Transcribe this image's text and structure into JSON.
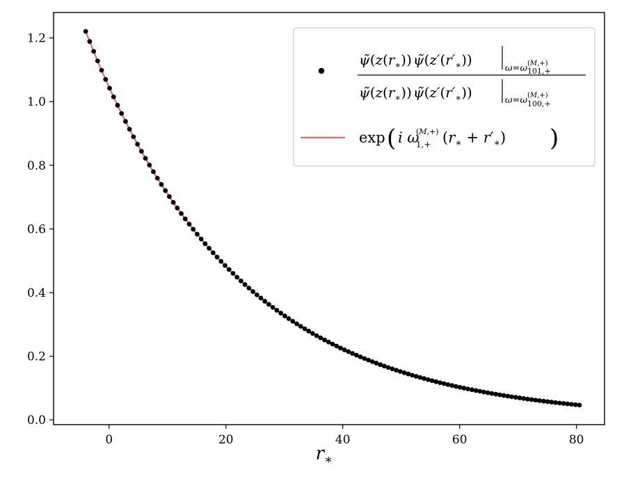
{
  "chart_data": {
    "type": "scatter",
    "xlabel": "r_*",
    "ylabel": "",
    "xlim": [
      -9.5,
      84.8
    ],
    "ylim": [
      -0.015,
      1.28
    ],
    "x_ticks": [
      0,
      20,
      40,
      60,
      80
    ],
    "y_ticks": [
      0.0,
      0.2,
      0.4,
      0.6,
      0.8,
      1.0,
      1.2
    ],
    "x_tick_labels": [
      "0",
      "20",
      "40",
      "60",
      "80"
    ],
    "y_tick_labels": [
      "0.0",
      "0.2",
      "0.4",
      "0.6",
      "0.8",
      "1.0",
      "1.2"
    ],
    "grid": false,
    "legend_position": "top-right",
    "curve_model": {
      "amplitude": 1.0457,
      "decay_rate": 0.03869
    },
    "series": [
      {
        "name": "ψ̃(z(r*)) ψ̃(z′(r′*)) |ω=ω(M,+)101,+ / ψ̃(z(r*)) ψ̃(z′(r′*)) |ω=ω(M,+)100,+",
        "kind": "points",
        "color": "#000000",
        "x_start": -4.0,
        "x_end": 80.5,
        "num_points": 125
      },
      {
        "name": "exp(i ω(M,+)1,+ (r* + r′*))",
        "kind": "line",
        "color": "#f06666",
        "x_start": -4.0,
        "x_end": 80.5
      }
    ]
  }
}
